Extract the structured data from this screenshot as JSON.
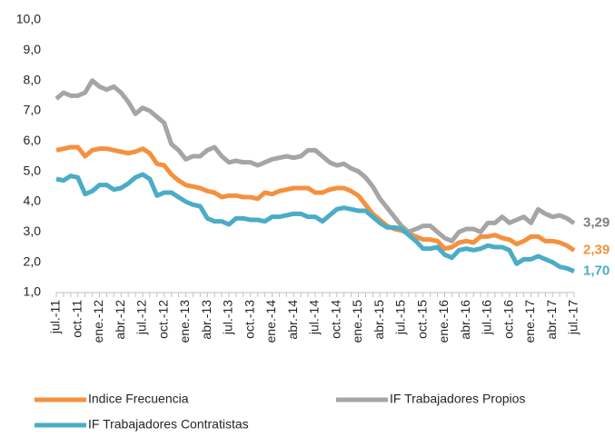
{
  "chart_data": {
    "type": "line",
    "categories": [
      "jul.-11",
      null,
      null,
      "oct.-11",
      null,
      null,
      "ene.-12",
      null,
      null,
      "abr.-12",
      null,
      null,
      "jul.-12",
      null,
      null,
      "oct.-12",
      null,
      null,
      "ene.-13",
      null,
      null,
      "abr.-13",
      null,
      null,
      "jul.-13",
      null,
      null,
      "oct.-13",
      null,
      null,
      "ene.-14",
      null,
      null,
      "abr.-14",
      null,
      null,
      "jul.-14",
      null,
      null,
      "oct.-14",
      null,
      null,
      "ene.-15",
      null,
      null,
      "abr.-15",
      null,
      null,
      "jul.-15",
      null,
      null,
      "oct.-15",
      null,
      null,
      "ene.-16",
      null,
      null,
      "abr.-16",
      null,
      null,
      "jul.-16",
      null,
      null,
      "oct.-16",
      null,
      null,
      "ene.-17",
      null,
      null,
      "abr.-17",
      null,
      null,
      "jul.-17"
    ],
    "series": [
      {
        "name": "Indice Frecuencia",
        "color": "#f4913f",
        "values": [
          5.7,
          5.75,
          5.8,
          5.8,
          5.5,
          5.7,
          5.75,
          5.75,
          5.7,
          5.65,
          5.6,
          5.65,
          5.75,
          5.6,
          5.25,
          5.2,
          4.9,
          4.7,
          4.55,
          4.5,
          4.45,
          4.35,
          4.3,
          4.15,
          4.2,
          4.2,
          4.15,
          4.15,
          4.1,
          4.3,
          4.25,
          4.35,
          4.4,
          4.45,
          4.45,
          4.45,
          4.3,
          4.3,
          4.4,
          4.45,
          4.45,
          4.35,
          4.2,
          3.9,
          3.6,
          3.4,
          3.2,
          3.1,
          3.05,
          2.95,
          2.85,
          2.75,
          2.75,
          2.7,
          2.45,
          2.5,
          2.65,
          2.7,
          2.65,
          2.85,
          2.85,
          2.9,
          2.8,
          2.75,
          2.6,
          2.7,
          2.85,
          2.85,
          2.7,
          2.7,
          2.65,
          2.55,
          2.39
        ],
        "value_labels": [
          null,
          null,
          null,
          null,
          null,
          null,
          null,
          null,
          null,
          null,
          null,
          null,
          null,
          null,
          null,
          null,
          null,
          null,
          null,
          null,
          null,
          null,
          null,
          null,
          null,
          null,
          null,
          null,
          null,
          null,
          null,
          null,
          null,
          null,
          null,
          null,
          null,
          null,
          null,
          null,
          null,
          null,
          null,
          null,
          null,
          null,
          null,
          null,
          null,
          null,
          null,
          null,
          null,
          null,
          null,
          null,
          null,
          null,
          null,
          null,
          null,
          null,
          null,
          null,
          null,
          null,
          null,
          null,
          null,
          null,
          null,
          null,
          "2,39"
        ]
      },
      {
        "name": "IF Trabajadores Propios",
        "color": "#a5a5a5",
        "values": [
          7.4,
          7.6,
          7.5,
          7.5,
          7.6,
          8.0,
          7.8,
          7.7,
          7.8,
          7.6,
          7.3,
          6.9,
          7.1,
          7.0,
          6.8,
          6.6,
          5.9,
          5.7,
          5.4,
          5.5,
          5.5,
          5.7,
          5.8,
          5.5,
          5.3,
          5.35,
          5.3,
          5.3,
          5.2,
          5.3,
          5.4,
          5.45,
          5.5,
          5.45,
          5.5,
          5.7,
          5.7,
          5.5,
          5.3,
          5.2,
          5.25,
          5.1,
          5.0,
          4.8,
          4.5,
          4.1,
          3.8,
          3.5,
          3.2,
          3.0,
          3.1,
          3.2,
          3.2,
          3.0,
          2.8,
          2.7,
          3.0,
          3.1,
          3.1,
          3.0,
          3.3,
          3.3,
          3.5,
          3.3,
          3.4,
          3.5,
          3.3,
          3.75,
          3.6,
          3.5,
          3.55,
          3.45,
          3.29
        ],
        "value_labels": [
          null,
          null,
          null,
          null,
          null,
          null,
          null,
          null,
          null,
          null,
          null,
          null,
          null,
          null,
          null,
          null,
          null,
          null,
          null,
          null,
          null,
          null,
          null,
          null,
          null,
          null,
          null,
          null,
          null,
          null,
          null,
          null,
          null,
          null,
          null,
          null,
          null,
          null,
          null,
          null,
          null,
          null,
          null,
          null,
          null,
          null,
          null,
          null,
          null,
          null,
          null,
          null,
          null,
          null,
          null,
          null,
          null,
          null,
          null,
          null,
          null,
          null,
          null,
          null,
          null,
          null,
          null,
          null,
          null,
          null,
          null,
          null,
          "3,29"
        ]
      },
      {
        "name": "IF Trabajadores Contratistas",
        "color": "#4bacc6",
        "values": [
          4.75,
          4.7,
          4.85,
          4.8,
          4.25,
          4.35,
          4.55,
          4.55,
          4.4,
          4.45,
          4.6,
          4.8,
          4.9,
          4.75,
          4.2,
          4.3,
          4.3,
          4.15,
          4.0,
          3.9,
          3.85,
          3.45,
          3.35,
          3.35,
          3.25,
          3.45,
          3.45,
          3.4,
          3.4,
          3.35,
          3.5,
          3.5,
          3.55,
          3.6,
          3.6,
          3.5,
          3.5,
          3.35,
          3.55,
          3.75,
          3.8,
          3.75,
          3.7,
          3.7,
          3.5,
          3.3,
          3.15,
          3.15,
          3.1,
          2.9,
          2.7,
          2.45,
          2.45,
          2.5,
          2.25,
          2.15,
          2.4,
          2.45,
          2.4,
          2.45,
          2.55,
          2.5,
          2.5,
          2.4,
          1.95,
          2.1,
          2.1,
          2.2,
          2.1,
          2.0,
          1.85,
          1.8,
          1.7
        ],
        "value_labels": [
          null,
          null,
          null,
          null,
          null,
          null,
          null,
          null,
          null,
          null,
          null,
          null,
          null,
          null,
          null,
          null,
          null,
          null,
          null,
          null,
          null,
          null,
          null,
          null,
          null,
          null,
          null,
          null,
          null,
          null,
          null,
          null,
          null,
          null,
          null,
          null,
          null,
          null,
          null,
          null,
          null,
          null,
          null,
          null,
          null,
          null,
          null,
          null,
          null,
          null,
          null,
          null,
          null,
          null,
          null,
          null,
          null,
          null,
          null,
          null,
          null,
          null,
          null,
          null,
          null,
          null,
          null,
          null,
          null,
          null,
          null,
          null,
          "1,70"
        ]
      }
    ],
    "ylim": [
      1,
      10
    ],
    "yticks": [
      {
        "value": 1,
        "label": "1,0"
      },
      {
        "value": 2,
        "label": "2,0"
      },
      {
        "value": 3,
        "label": "3,0"
      },
      {
        "value": 4,
        "label": "4,0"
      },
      {
        "value": 5,
        "label": "5,0"
      },
      {
        "value": 6,
        "label": "6,0"
      },
      {
        "value": 7,
        "label": "7,0"
      },
      {
        "value": 8,
        "label": "8,0"
      },
      {
        "value": 9,
        "label": "9,0"
      },
      {
        "value": 10,
        "label": "10,0"
      }
    ],
    "grid": false,
    "legend": "bottom"
  }
}
